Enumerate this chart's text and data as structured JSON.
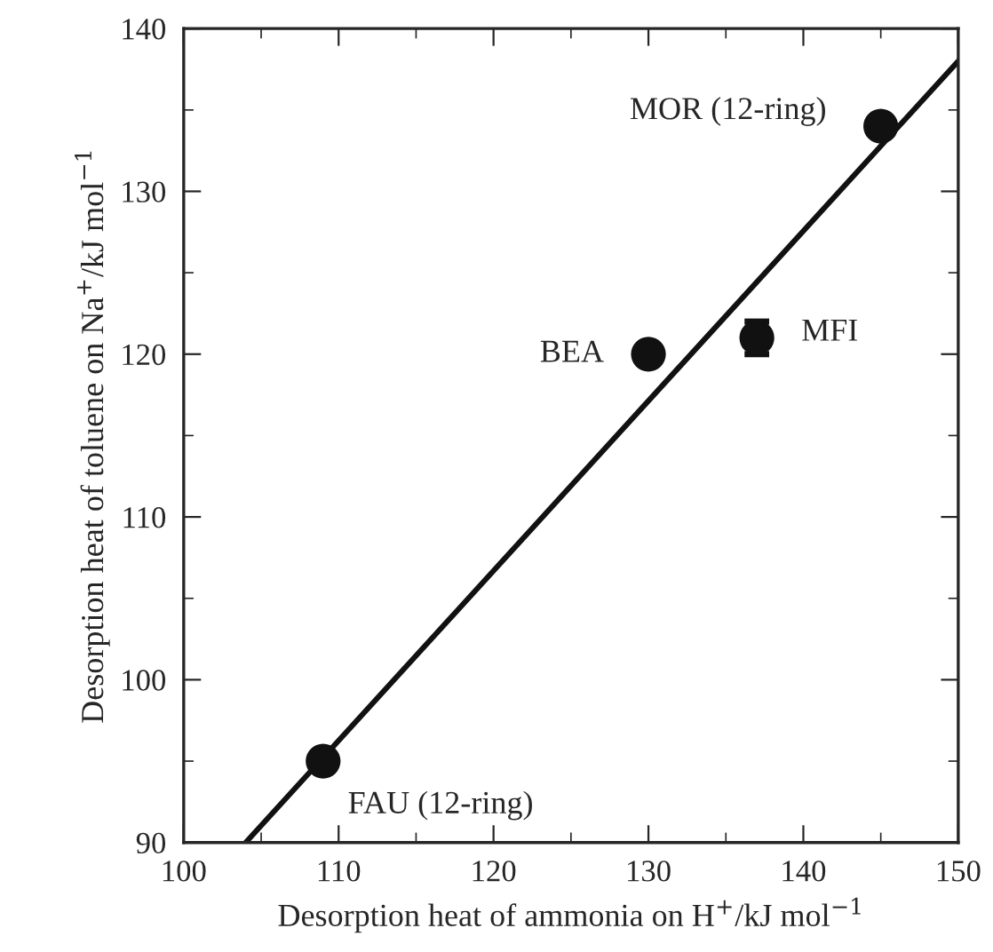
{
  "chart_data": {
    "type": "scatter",
    "xlabel": "Desorption heat of ammonia on H$^{+}$/kJ mol$^{−1}$",
    "ylabel": "Desorption heat of toluene on Na$^{+}$/kJ mol$^{−1}$",
    "xlim": [
      100,
      150
    ],
    "ylim": [
      90,
      140
    ],
    "xticks": [
      100,
      110,
      120,
      130,
      140,
      150
    ],
    "yticks": [
      90,
      100,
      110,
      120,
      130,
      140
    ],
    "grid": false,
    "legend": false,
    "marker": "circle",
    "series": [
      {
        "color": "#111111",
        "x": [
          109,
          130,
          137,
          145
        ],
        "values": [
          95,
          120,
          121,
          134
        ],
        "errors": [
          null,
          null,
          1,
          null
        ]
      },
      {
        "type": "line",
        "color": "#111111",
        "line_style": "solid",
        "marker": "none",
        "x": [
          104,
          150
        ],
        "values": [
          90,
          138
        ]
      }
    ],
    "annotations": [
      {
        "text": "FAU (12-ring)",
        "x": 109,
        "y": 95
      },
      {
        "text": "BEA",
        "x": 130,
        "y": 120
      },
      {
        "text": "MFI",
        "x": 137,
        "y": 121
      },
      {
        "text": "MOR (12-ring)",
        "x": 145,
        "y": 134
      }
    ]
  }
}
